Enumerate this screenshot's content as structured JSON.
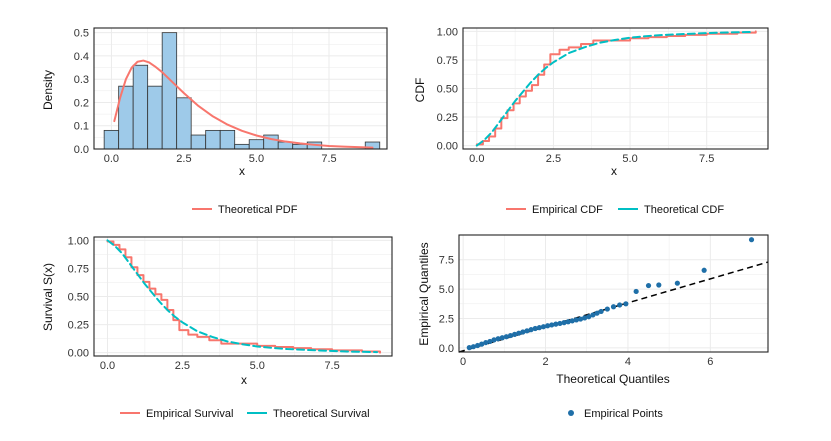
{
  "colors": {
    "theoretical": "#F8766D",
    "empirical_cdf": "#F8766D",
    "theoretical_cdf": "#00BFC4",
    "histogram_fill": "#9ECAE9",
    "histogram_edge": "#333333",
    "points": "#1F6FA8",
    "reference": "#000000",
    "grid": "#EBEBEB"
  },
  "chart_data": [
    {
      "id": "pdf",
      "type": "bar",
      "xlabel": "x",
      "ylabel": "Density",
      "xlim": [
        -0.6,
        9.5
      ],
      "ylim": [
        0,
        0.52
      ],
      "xticks": [
        0.0,
        2.5,
        5.0,
        7.5
      ],
      "xtick_labels": [
        "0.0",
        "2.5",
        "5.0",
        "7.5"
      ],
      "yticks": [
        0.0,
        0.1,
        0.2,
        0.3,
        0.4,
        0.5
      ],
      "ytick_labels": [
        "0.0",
        "0.1",
        "0.2",
        "0.3",
        "0.4",
        "0.5"
      ],
      "bin_edges": [
        -0.25,
        0.25,
        0.75,
        1.25,
        1.75,
        2.25,
        2.75,
        3.25,
        3.75,
        4.25,
        4.75,
        5.25,
        5.75,
        6.25,
        6.75,
        7.25,
        7.75,
        8.25,
        8.75,
        9.25
      ],
      "bin_values": [
        0.08,
        0.27,
        0.36,
        0.27,
        0.5,
        0.22,
        0.06,
        0.08,
        0.08,
        0.02,
        0.04,
        0.06,
        0.03,
        0.02,
        0.03,
        0.0,
        0.0,
        0.0,
        0.03
      ],
      "series": [
        {
          "name": "Theoretical PDF",
          "x": [
            0.1,
            0.3,
            0.5,
            0.7,
            0.9,
            1.1,
            1.3,
            1.5,
            1.75,
            2.0,
            2.25,
            2.5,
            3.0,
            3.5,
            4.0,
            4.5,
            5.0,
            5.5,
            6.0,
            6.5,
            7.0,
            7.5,
            8.0,
            8.5,
            9.0
          ],
          "y": [
            0.12,
            0.22,
            0.3,
            0.35,
            0.375,
            0.38,
            0.372,
            0.355,
            0.33,
            0.3,
            0.27,
            0.24,
            0.185,
            0.14,
            0.105,
            0.078,
            0.058,
            0.043,
            0.032,
            0.024,
            0.018,
            0.013,
            0.01,
            0.008,
            0.006
          ]
        }
      ],
      "legend": [
        "Theoretical PDF"
      ]
    },
    {
      "id": "cdf",
      "type": "line",
      "xlabel": "x",
      "ylabel": "CDF",
      "xlim": [
        -0.45,
        9.5
      ],
      "ylim": [
        -0.03,
        1.03
      ],
      "xticks": [
        0.0,
        2.5,
        5.0,
        7.5
      ],
      "xtick_labels": [
        "0.0",
        "2.5",
        "5.0",
        "7.5"
      ],
      "yticks": [
        0.0,
        0.25,
        0.5,
        0.75,
        1.0
      ],
      "ytick_labels": [
        "0.00",
        "0.25",
        "0.50",
        "0.75",
        "1.00"
      ],
      "series": [
        {
          "name": "Empirical CDF",
          "step": true,
          "x": [
            0.0,
            0.2,
            0.4,
            0.6,
            0.8,
            1.0,
            1.2,
            1.4,
            1.6,
            1.8,
            2.0,
            2.2,
            2.4,
            2.7,
            3.0,
            3.4,
            3.8,
            4.3,
            5.0,
            5.6,
            6.2,
            6.8,
            7.5,
            8.5,
            9.1
          ],
          "y": [
            0.01,
            0.04,
            0.08,
            0.15,
            0.24,
            0.31,
            0.37,
            0.43,
            0.48,
            0.53,
            0.62,
            0.71,
            0.8,
            0.84,
            0.86,
            0.89,
            0.92,
            0.92,
            0.94,
            0.95,
            0.96,
            0.97,
            0.98,
            0.99,
            1.0
          ]
        },
        {
          "name": "Theoretical CDF",
          "dashed": true,
          "x": [
            0.0,
            0.25,
            0.5,
            0.75,
            1.0,
            1.25,
            1.5,
            1.75,
            2.0,
            2.25,
            2.5,
            3.0,
            3.5,
            4.0,
            4.5,
            5.0,
            5.5,
            6.0,
            7.0,
            8.0,
            9.0
          ],
          "y": [
            0.0,
            0.05,
            0.12,
            0.21,
            0.3,
            0.39,
            0.47,
            0.55,
            0.62,
            0.68,
            0.73,
            0.81,
            0.86,
            0.9,
            0.925,
            0.945,
            0.958,
            0.968,
            0.98,
            0.99,
            0.995
          ]
        }
      ],
      "legend": [
        "Empirical CDF",
        "Theoretical CDF"
      ]
    },
    {
      "id": "survival",
      "type": "line",
      "xlabel": "x",
      "ylabel": "Survival S(x)",
      "xlim": [
        -0.45,
        9.5
      ],
      "ylim": [
        -0.03,
        1.03
      ],
      "xticks": [
        0.0,
        2.5,
        5.0,
        7.5
      ],
      "xtick_labels": [
        "0.0",
        "2.5",
        "5.0",
        "7.5"
      ],
      "yticks": [
        0.0,
        0.25,
        0.5,
        0.75,
        1.0
      ],
      "ytick_labels": [
        "0.00",
        "0.25",
        "0.50",
        "0.75",
        "1.00"
      ],
      "series": [
        {
          "name": "Empirical Survival",
          "step": true,
          "x": [
            0.0,
            0.2,
            0.4,
            0.6,
            0.8,
            1.0,
            1.2,
            1.4,
            1.6,
            1.8,
            2.0,
            2.2,
            2.4,
            2.7,
            3.0,
            3.4,
            3.8,
            4.3,
            5.0,
            5.6,
            6.2,
            6.8,
            7.5,
            8.5,
            9.1
          ],
          "y": [
            0.99,
            0.96,
            0.92,
            0.85,
            0.76,
            0.69,
            0.63,
            0.57,
            0.52,
            0.47,
            0.38,
            0.29,
            0.2,
            0.16,
            0.14,
            0.11,
            0.08,
            0.08,
            0.06,
            0.05,
            0.04,
            0.03,
            0.02,
            0.01,
            0.0
          ]
        },
        {
          "name": "Theoretical Survival",
          "dashed": true,
          "x": [
            0.0,
            0.25,
            0.5,
            0.75,
            1.0,
            1.25,
            1.5,
            1.75,
            2.0,
            2.25,
            2.5,
            3.0,
            3.5,
            4.0,
            4.5,
            5.0,
            5.5,
            6.0,
            7.0,
            8.0,
            9.0
          ],
          "y": [
            1.0,
            0.95,
            0.88,
            0.79,
            0.7,
            0.61,
            0.53,
            0.45,
            0.38,
            0.32,
            0.27,
            0.19,
            0.14,
            0.1,
            0.075,
            0.055,
            0.042,
            0.032,
            0.02,
            0.01,
            0.005
          ]
        }
      ],
      "legend": [
        "Empirical Survival",
        "Theoretical Survival"
      ]
    },
    {
      "id": "qq",
      "type": "scatter",
      "xlabel": "Theoretical Quantiles",
      "ylabel": "Empirical Quantiles",
      "xlim": [
        -0.1,
        7.4
      ],
      "ylim": [
        -0.35,
        9.6
      ],
      "xticks": [
        0,
        2,
        4,
        6
      ],
      "xtick_labels": [
        "0",
        "2",
        "4",
        "6"
      ],
      "yticks": [
        0.0,
        2.5,
        5.0,
        7.5
      ],
      "ytick_labels": [
        "0.0",
        "2.5",
        "5.0",
        "7.5"
      ],
      "reference_line": {
        "slope": 1.02,
        "intercept": -0.25
      },
      "series": [
        {
          "name": "Empirical Points",
          "x": [
            0.15,
            0.25,
            0.35,
            0.45,
            0.55,
            0.65,
            0.75,
            0.85,
            0.95,
            1.05,
            1.15,
            1.25,
            1.35,
            1.45,
            1.55,
            1.65,
            1.75,
            1.85,
            1.95,
            2.05,
            2.15,
            2.25,
            2.35,
            2.45,
            2.55,
            2.65,
            2.75,
            2.85,
            2.95,
            3.05,
            3.15,
            3.25,
            3.35,
            3.5,
            3.65,
            3.8,
            3.95,
            4.2,
            4.5,
            4.75,
            5.2,
            5.85,
            7.0
          ],
          "y": [
            0.02,
            0.1,
            0.2,
            0.32,
            0.45,
            0.55,
            0.68,
            0.78,
            0.86,
            0.95,
            1.05,
            1.15,
            1.25,
            1.35,
            1.45,
            1.55,
            1.65,
            1.72,
            1.8,
            1.88,
            1.95,
            2.02,
            2.08,
            2.15,
            2.22,
            2.3,
            2.38,
            2.45,
            2.55,
            2.65,
            2.8,
            2.95,
            3.1,
            3.3,
            3.5,
            3.65,
            3.75,
            4.8,
            5.3,
            5.35,
            5.5,
            6.6,
            9.2
          ]
        }
      ],
      "legend": [
        "Empirical Points"
      ]
    }
  ]
}
